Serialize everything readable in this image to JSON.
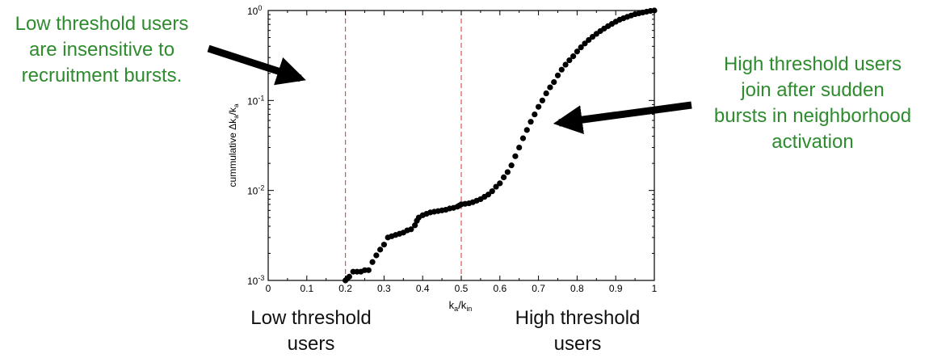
{
  "annotations": {
    "left": [
      "Low threshold users",
      "are insensitive to",
      "recruitment bursts."
    ],
    "right": [
      "High threshold users",
      "join after sudden",
      "bursts in neighborhood",
      "activation"
    ],
    "left_color": "#2e8b2e",
    "below_low": [
      "Low threshold",
      "users"
    ],
    "below_high": [
      "High threshold",
      "users"
    ]
  },
  "chart_data": {
    "type": "scatter",
    "title": "",
    "xlabel": "k_a/k_in",
    "ylabel": "cummulative Δk_a/k_a",
    "xlim": [
      0,
      1
    ],
    "ylim": [
      0.001,
      1
    ],
    "yscale": "log",
    "x_ticks": [
      "0",
      "0.1",
      "0.2",
      "0.3",
      "0.4",
      "0.5",
      "0.6",
      "0.7",
      "0.8",
      "0.9",
      "1"
    ],
    "y_ticks": [
      {
        "base": "10",
        "exp": "-3"
      },
      {
        "base": "10",
        "exp": "-2"
      },
      {
        "base": "10",
        "exp": "-1"
      },
      {
        "base": "10",
        "exp": "0"
      }
    ],
    "vlines": [
      0.2,
      0.5
    ],
    "vline_color": "#e05050",
    "marker_color": "#000000",
    "grid": false,
    "points": [
      [
        0.2,
        0.001
      ],
      [
        0.205,
        0.00105
      ],
      [
        0.21,
        0.0011
      ],
      [
        0.22,
        0.00125
      ],
      [
        0.23,
        0.00125
      ],
      [
        0.24,
        0.00125
      ],
      [
        0.25,
        0.0013
      ],
      [
        0.26,
        0.0013
      ],
      [
        0.27,
        0.0016
      ],
      [
        0.28,
        0.0019
      ],
      [
        0.29,
        0.0022
      ],
      [
        0.3,
        0.0025
      ],
      [
        0.31,
        0.003
      ],
      [
        0.32,
        0.0031
      ],
      [
        0.33,
        0.0032
      ],
      [
        0.34,
        0.0033
      ],
      [
        0.35,
        0.0034
      ],
      [
        0.36,
        0.0036
      ],
      [
        0.37,
        0.0037
      ],
      [
        0.38,
        0.0041
      ],
      [
        0.385,
        0.0046
      ],
      [
        0.39,
        0.005
      ],
      [
        0.4,
        0.0053
      ],
      [
        0.41,
        0.0055
      ],
      [
        0.42,
        0.0057
      ],
      [
        0.43,
        0.0058
      ],
      [
        0.44,
        0.0059
      ],
      [
        0.45,
        0.006
      ],
      [
        0.46,
        0.0061
      ],
      [
        0.47,
        0.0063
      ],
      [
        0.48,
        0.0064
      ],
      [
        0.49,
        0.0066
      ],
      [
        0.495,
        0.0068
      ],
      [
        0.5,
        0.007
      ],
      [
        0.51,
        0.0071
      ],
      [
        0.52,
        0.0072
      ],
      [
        0.53,
        0.0074
      ],
      [
        0.54,
        0.0077
      ],
      [
        0.55,
        0.008
      ],
      [
        0.56,
        0.0085
      ],
      [
        0.57,
        0.009
      ],
      [
        0.58,
        0.0098
      ],
      [
        0.59,
        0.011
      ],
      [
        0.6,
        0.012
      ],
      [
        0.61,
        0.014
      ],
      [
        0.62,
        0.016
      ],
      [
        0.63,
        0.019
      ],
      [
        0.64,
        0.024
      ],
      [
        0.65,
        0.03
      ],
      [
        0.66,
        0.038
      ],
      [
        0.67,
        0.047
      ],
      [
        0.68,
        0.058
      ],
      [
        0.69,
        0.07
      ],
      [
        0.7,
        0.085
      ],
      [
        0.71,
        0.1
      ],
      [
        0.72,
        0.12
      ],
      [
        0.73,
        0.14
      ],
      [
        0.74,
        0.16
      ],
      [
        0.75,
        0.19
      ],
      [
        0.76,
        0.22
      ],
      [
        0.77,
        0.25
      ],
      [
        0.78,
        0.28
      ],
      [
        0.79,
        0.31
      ],
      [
        0.8,
        0.35
      ],
      [
        0.81,
        0.39
      ],
      [
        0.82,
        0.43
      ],
      [
        0.83,
        0.47
      ],
      [
        0.84,
        0.51
      ],
      [
        0.85,
        0.55
      ],
      [
        0.86,
        0.59
      ],
      [
        0.87,
        0.63
      ],
      [
        0.88,
        0.67
      ],
      [
        0.89,
        0.71
      ],
      [
        0.9,
        0.75
      ],
      [
        0.91,
        0.79
      ],
      [
        0.92,
        0.82
      ],
      [
        0.93,
        0.85
      ],
      [
        0.94,
        0.88
      ],
      [
        0.95,
        0.91
      ],
      [
        0.96,
        0.93
      ],
      [
        0.97,
        0.95
      ],
      [
        0.98,
        0.97
      ],
      [
        0.99,
        0.99
      ],
      [
        1.0,
        1.0
      ]
    ]
  }
}
